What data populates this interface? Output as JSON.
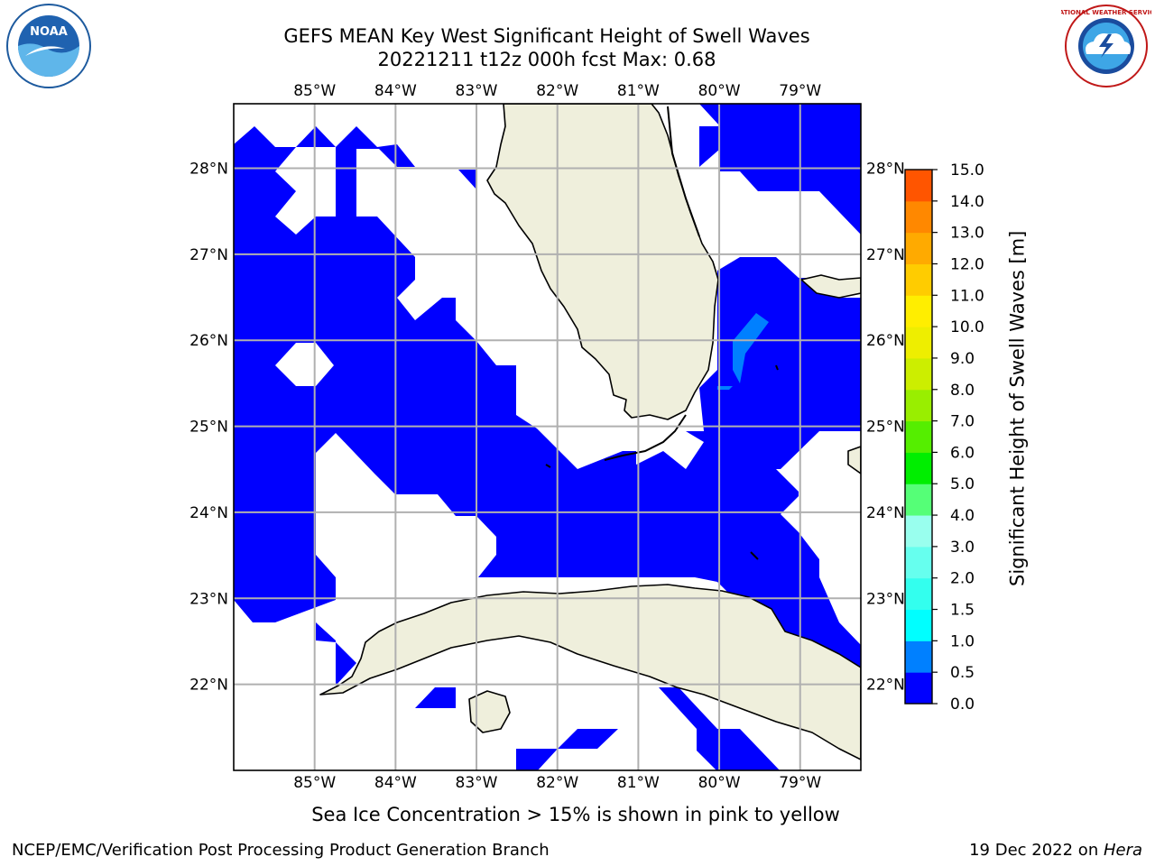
{
  "title_line1": "GEFS MEAN Key West Significant Height of Swell Waves",
  "title_line2": "20221211 t12z 000h fcst   Max: 0.68",
  "map": {
    "lon_labels": [
      "85°W",
      "84°W",
      "83°W",
      "82°W",
      "81°W",
      "80°W",
      "79°W"
    ],
    "lon_values": [
      -85,
      -84,
      -83,
      -82,
      -81,
      -80,
      -79
    ],
    "lat_labels": [
      "22°N",
      "23°N",
      "24°N",
      "25°N",
      "26°N",
      "27°N",
      "28°N"
    ],
    "lat_values": [
      22,
      23,
      24,
      25,
      26,
      27,
      28
    ],
    "lon_range": [
      -86,
      -78.25
    ],
    "lat_range": [
      21,
      28.75
    ],
    "land_color": "#efefdc",
    "field_color_low": "#0000ff",
    "field_color_mid": "#0080ff",
    "gridline_color": "#b0b0b0"
  },
  "colorbar": {
    "label": "Significant Height of Swell Waves [m]",
    "tick_labels": [
      "0.0",
      "0.5",
      "1.0",
      "1.5",
      "2.0",
      "3.0",
      "4.0",
      "5.0",
      "6.0",
      "7.0",
      "8.0",
      "9.0",
      "10.0",
      "11.0",
      "12.0",
      "13.0",
      "14.0",
      "15.0"
    ],
    "colors": [
      "#0000ff",
      "#0080ff",
      "#00ffff",
      "#33ffee",
      "#66ffee",
      "#99ffee",
      "#55ff77",
      "#00ee00",
      "#55ee00",
      "#99ee00",
      "#ccee00",
      "#eeee00",
      "#ffee00",
      "#ffcc00",
      "#ffaa00",
      "#ff8800",
      "#ff5500",
      "#ff2200",
      "#ff0000"
    ]
  },
  "note": "Sea Ice Concentration > 15% is shown in pink to yellow",
  "footer_left": "NCEP/EMC/Verification Post Processing Product Generation Branch",
  "footer_date": "19 Dec 2022 on ",
  "footer_host": "Hera",
  "logos": {
    "left": "NOAA",
    "right": "NATIONAL WEATHER SERVICE"
  }
}
